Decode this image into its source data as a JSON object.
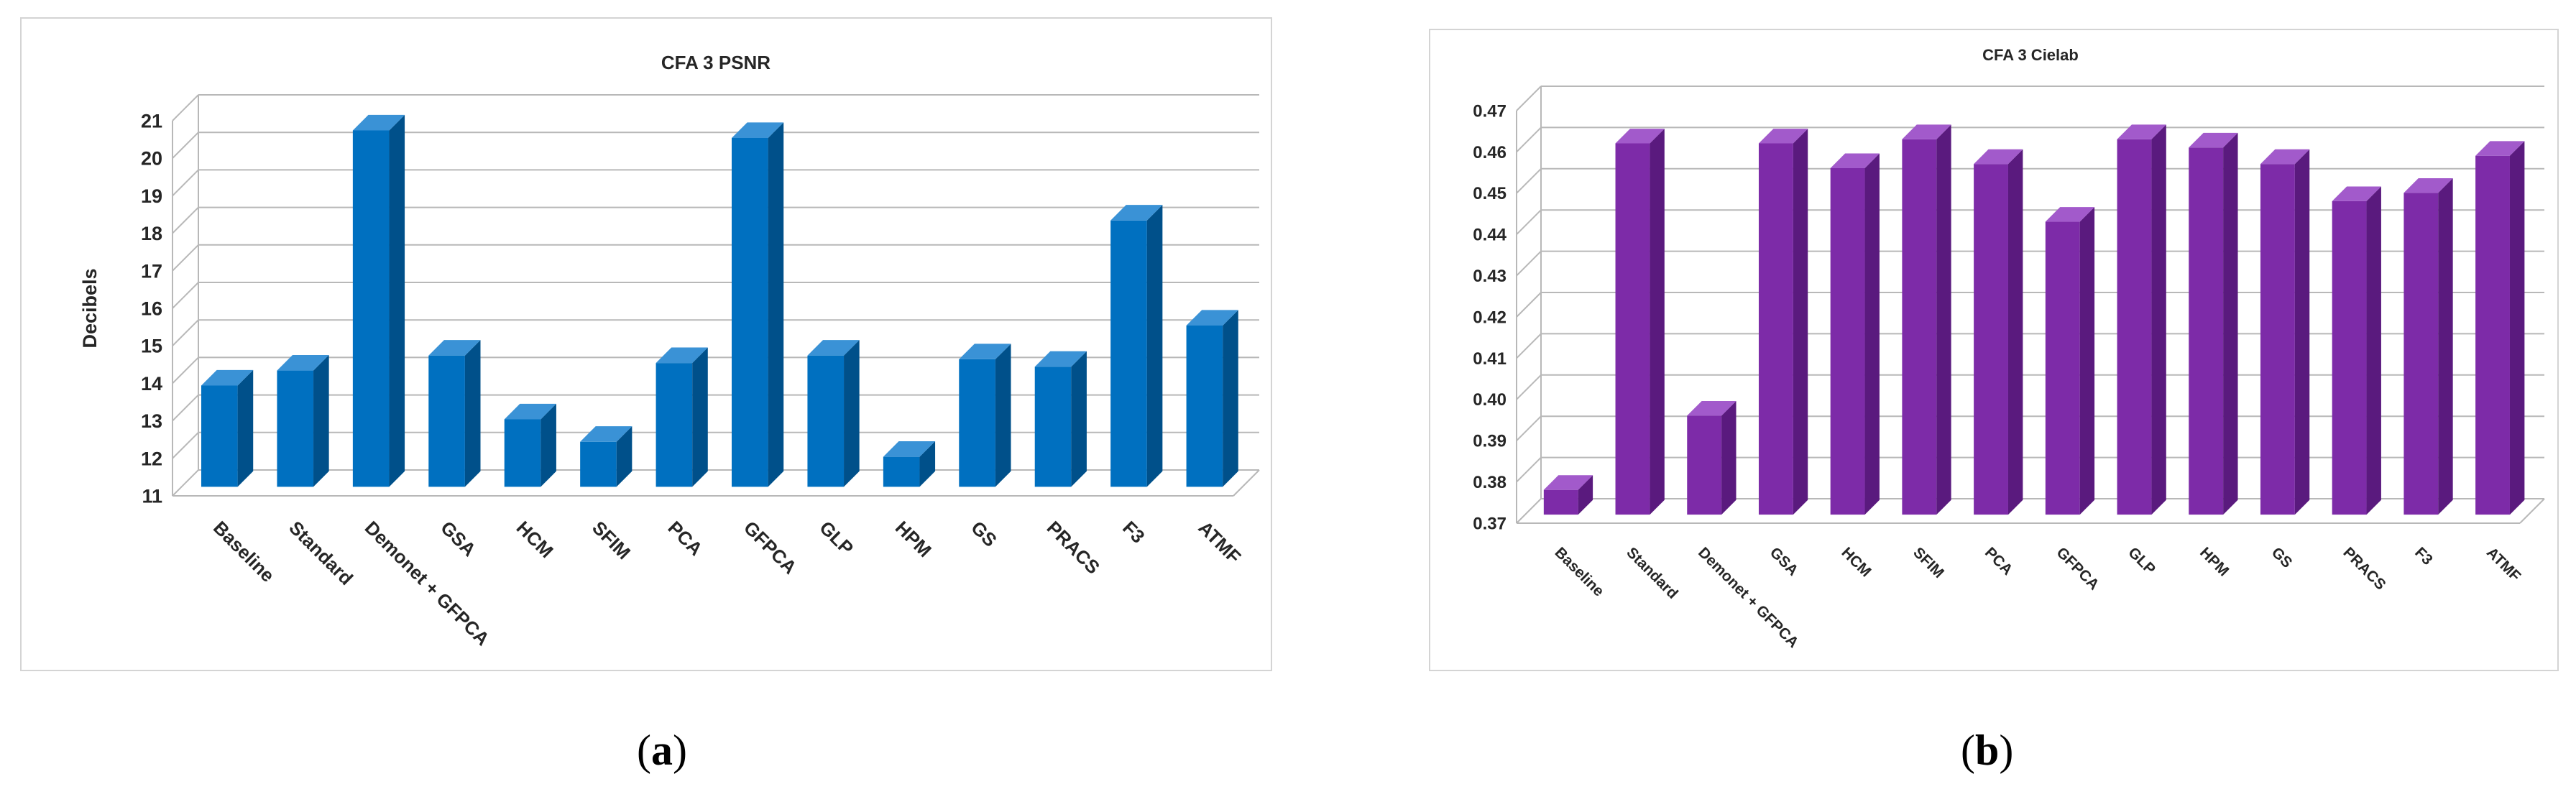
{
  "chart_data": [
    {
      "type": "bar",
      "title": "CFA 3 PSNR",
      "ylabel": "Decibels",
      "xlabel": "",
      "ylim": [
        11,
        21
      ],
      "yticks": [
        11,
        12,
        13,
        14,
        15,
        16,
        17,
        18,
        19,
        20,
        21
      ],
      "ytick_decimals": 0,
      "grid": true,
      "legend": "none",
      "bar_color": "#0070C0",
      "bar_side_color": "#00508A",
      "bar_top_color": "#3A92D6",
      "categories": [
        "Baseline",
        "Standard",
        "Demonet + GFPCA",
        "GSA",
        "HCM",
        "SFIM",
        "PCA",
        "GFPCA",
        "GLP",
        "HPM",
        "GS",
        "PRACS",
        "F3",
        "ATMF"
      ],
      "values": [
        13.7,
        14.1,
        20.5,
        14.5,
        12.8,
        12.2,
        14.3,
        20.3,
        14.5,
        11.8,
        14.4,
        14.2,
        18.1,
        15.3
      ]
    },
    {
      "type": "bar",
      "title": "CFA 3 Cielab",
      "ylabel": "",
      "xlabel": "",
      "ylim": [
        0.37,
        0.47
      ],
      "yticks": [
        0.37,
        0.38,
        0.39,
        0.4,
        0.41,
        0.42,
        0.43,
        0.44,
        0.45,
        0.46,
        0.47
      ],
      "ytick_decimals": 2,
      "grid": true,
      "legend": "none",
      "bar_color": "#7D2BA8",
      "bar_side_color": "#5A1A7E",
      "bar_top_color": "#A25ACB",
      "categories": [
        "Baseline",
        "Standard",
        "Demonet + GFPCA",
        "GSA",
        "HCM",
        "SFIM",
        "PCA",
        "GFPCA",
        "GLP",
        "HPM",
        "GS",
        "PRACS",
        "F3",
        "ATMF"
      ],
      "values": [
        0.376,
        0.46,
        0.394,
        0.46,
        0.454,
        0.461,
        0.455,
        0.441,
        0.461,
        0.459,
        0.455,
        0.446,
        0.448,
        0.457
      ]
    }
  ],
  "captions": [
    "a",
    "b"
  ]
}
